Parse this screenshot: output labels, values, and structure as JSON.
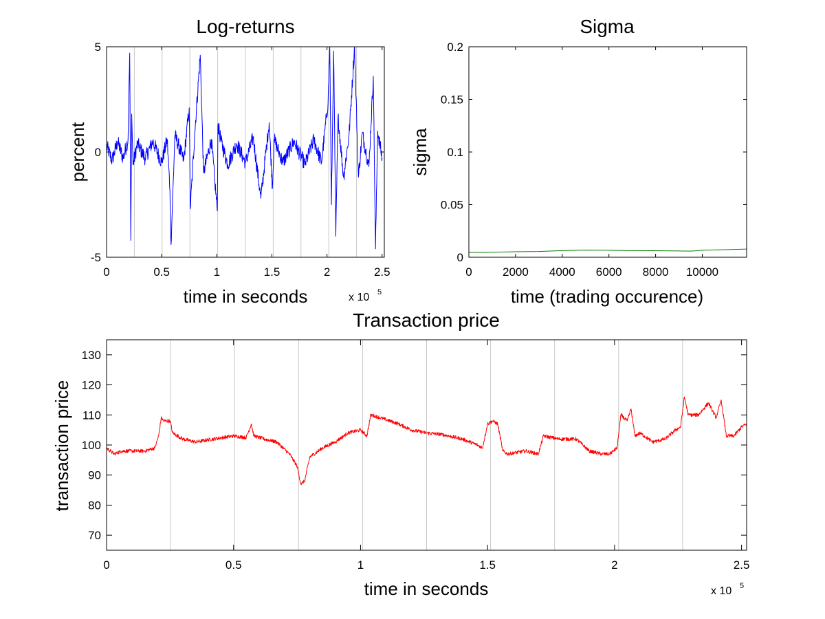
{
  "chart_data": [
    {
      "type": "line",
      "title": "Log-returns",
      "xlabel": "time in seconds",
      "ylabel": "percent",
      "x_multiplier_label": "x 10",
      "x_multiplier_exponent": "5",
      "xlim": [
        0,
        252000
      ],
      "ylim": [
        -5,
        5
      ],
      "xticks": [
        0,
        50000,
        100000,
        150000,
        200000,
        250000
      ],
      "xtick_labels": [
        "0",
        "0.5",
        "1",
        "1.5",
        "2",
        "2.5"
      ],
      "yticks": [
        -5,
        0,
        5
      ],
      "ytick_labels": [
        "-5",
        "0",
        "5"
      ],
      "vertical_lines": [
        25200,
        50400,
        75600,
        100800,
        126000,
        151200,
        176400,
        201600,
        226800,
        252000
      ],
      "series": [
        {
          "color": "#0000ff",
          "x": [
            0,
            5000,
            10000,
            15000,
            19500,
            21000,
            22000,
            22800,
            24000,
            28000,
            35000,
            42000,
            50000,
            55000,
            57500,
            58500,
            62000,
            70000,
            75000,
            76000,
            80000,
            85000,
            88000,
            95000,
            100500,
            101000,
            104000,
            110000,
            118000,
            126000,
            133000,
            140000,
            147500,
            150500,
            152000,
            160000,
            170000,
            180000,
            188000,
            195000,
            201000,
            202500,
            204000,
            206000,
            208000,
            210000,
            215000,
            220000,
            225000,
            228500,
            232000,
            238000,
            242000,
            244000,
            246000,
            250000
          ],
          "y": [
            0.3,
            -0.4,
            0.5,
            -0.3,
            0.6,
            4.7,
            -4.2,
            1.8,
            -0.6,
            0.4,
            -0.3,
            0.5,
            -0.5,
            0.6,
            -1.8,
            -4.4,
            0.8,
            -0.4,
            2.1,
            -2.7,
            0.9,
            4.6,
            -1.0,
            0.6,
            -2.8,
            1.3,
            0.5,
            -0.6,
            0.4,
            -0.5,
            0.7,
            -2.2,
            1.4,
            -1.7,
            0.6,
            -0.5,
            0.5,
            -0.6,
            0.6,
            -0.5,
            2.4,
            5.0,
            -2.5,
            4.8,
            -4.0,
            1.7,
            -1.2,
            0.8,
            5.0,
            -1.2,
            0.9,
            -0.7,
            3.6,
            -4.6,
            1.0,
            -0.3
          ],
          "noise_amplitude": 0.35
        }
      ]
    },
    {
      "type": "line",
      "title": "Sigma",
      "xlabel": "time (trading occurence)",
      "ylabel": "sigma",
      "xlim": [
        0,
        11900
      ],
      "ylim": [
        0,
        0.2
      ],
      "xticks": [
        0,
        2000,
        4000,
        6000,
        8000,
        10000
      ],
      "xtick_labels": [
        "0",
        "2000",
        "4000",
        "6000",
        "8000",
        "10000"
      ],
      "yticks": [
        0,
        0.05,
        0.1,
        0.15,
        0.2
      ],
      "ytick_labels": [
        "0",
        "0.05",
        "0.1",
        "0.15",
        "0.2"
      ],
      "series": [
        {
          "color": "#007f00",
          "x": [
            0,
            1000,
            2000,
            3000,
            4000,
            5000,
            6000,
            7000,
            8000,
            9000,
            9500,
            10000,
            11000,
            11900
          ],
          "y": [
            0.0045,
            0.0047,
            0.0052,
            0.0055,
            0.0063,
            0.0068,
            0.0066,
            0.0063,
            0.0062,
            0.006,
            0.0058,
            0.0066,
            0.0072,
            0.0078
          ]
        }
      ]
    },
    {
      "type": "line",
      "title": "Transaction price",
      "xlabel": "time in seconds",
      "ylabel": "transaction price",
      "x_multiplier_label": "x 10",
      "x_multiplier_exponent": "5",
      "xlim": [
        0,
        252000
      ],
      "ylim": [
        65,
        135
      ],
      "xticks": [
        0,
        50000,
        100000,
        150000,
        200000,
        250000
      ],
      "xtick_labels": [
        "0",
        "0.5",
        "1",
        "1.5",
        "2",
        "2.5"
      ],
      "yticks": [
        70,
        80,
        90,
        100,
        110,
        120,
        130
      ],
      "ytick_labels": [
        "70",
        "80",
        "90",
        "100",
        "110",
        "120",
        "130"
      ],
      "vertical_lines": [
        25200,
        50400,
        75600,
        100800,
        126000,
        151200,
        176400,
        201600,
        226800,
        252000
      ],
      "series": [
        {
          "color": "#ff0000",
          "x": [
            0,
            3000,
            6000,
            10000,
            15000,
            19000,
            20500,
            21500,
            22500,
            25000,
            26000,
            30000,
            35000,
            42000,
            50000,
            55000,
            57000,
            58000,
            62000,
            67000,
            72000,
            75000,
            76500,
            78000,
            80000,
            85000,
            90000,
            95000,
            100000,
            102500,
            104000,
            108000,
            115000,
            120000,
            126000,
            132000,
            140000,
            146000,
            148000,
            150000,
            152000,
            154000,
            156000,
            158000,
            165000,
            170000,
            172000,
            178000,
            185000,
            190000,
            195000,
            198000,
            201000,
            202500,
            205000,
            206500,
            208000,
            210000,
            215000,
            220000,
            224000,
            226000,
            227500,
            229000,
            233000,
            237000,
            240000,
            242000,
            244000,
            247000,
            250000,
            252000
          ],
          "y": [
            99,
            97,
            98,
            98,
            98,
            99,
            103,
            109,
            108,
            108,
            104,
            102,
            101,
            102,
            103,
            102.5,
            107,
            103,
            102,
            101,
            97,
            93,
            87,
            88,
            96,
            99,
            101,
            104,
            105,
            103,
            110,
            109,
            107,
            105,
            104,
            103.5,
            102,
            100,
            99,
            107,
            108,
            107,
            98,
            97,
            98,
            97,
            103,
            102,
            102,
            98,
            97,
            97,
            99,
            110,
            108,
            112,
            103,
            104,
            101,
            102,
            105,
            106,
            116,
            110,
            110,
            114,
            109,
            115,
            103,
            103,
            106,
            107
          ],
          "noise_amplitude": 0.6
        }
      ]
    }
  ]
}
